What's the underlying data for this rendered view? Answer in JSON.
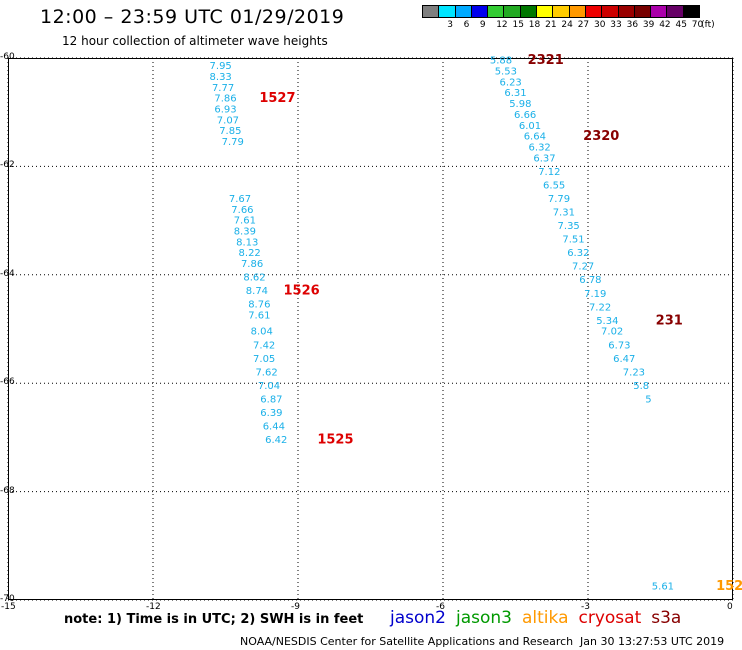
{
  "header": {
    "title": "12:00 – 23:59 UTC 01/29/2019",
    "subtitle": "12 hour collection of altimeter wave heights"
  },
  "color_legend": {
    "unit": "(ft)",
    "bins": [
      {
        "color": "#7f7f7f",
        "label": ""
      },
      {
        "color": "#00e5ff",
        "label": "3"
      },
      {
        "color": "#00aaff",
        "label": "6"
      },
      {
        "color": "#0000ee",
        "label": "9"
      },
      {
        "color": "#33cc33",
        "label": "12"
      },
      {
        "color": "#22aa22",
        "label": "15"
      },
      {
        "color": "#007700",
        "label": "18"
      },
      {
        "color": "#ffff00",
        "label": "21"
      },
      {
        "color": "#ffcc00",
        "label": "24"
      },
      {
        "color": "#ff9900",
        "label": "27"
      },
      {
        "color": "#ee0000",
        "label": "30"
      },
      {
        "color": "#cc0000",
        "label": "33"
      },
      {
        "color": "#990000",
        "label": "36"
      },
      {
        "color": "#770000",
        "label": "39"
      },
      {
        "color": "#aa00aa",
        "label": "42"
      },
      {
        "color": "#660066",
        "label": "45"
      },
      {
        "color": "#000000",
        "label": "70"
      }
    ]
  },
  "map": {
    "lat_range": [
      -70,
      -60
    ],
    "lon_range": [
      -15,
      0
    ],
    "lat_ticks": [
      "-60",
      "-62",
      "-64",
      "-66",
      "-68",
      "-70"
    ],
    "lon_ticks": [
      "-15",
      "-12",
      "-9",
      "-6",
      "-3",
      "0"
    ],
    "grid_line_color": "#000000",
    "value_color": "#1ab0e8",
    "tracks": [
      {
        "pass_label": "1527",
        "label_color": "#dd0000",
        "points": [
          {
            "lat": -60.15,
            "lon": -10.6,
            "value": "7.95"
          },
          {
            "lat": -60.35,
            "lon": -10.6,
            "value": "8.33"
          },
          {
            "lat": -60.55,
            "lon": -10.55,
            "value": "7.77"
          },
          {
            "lat": -60.75,
            "lon": -10.5,
            "value": "7.86"
          },
          {
            "lat": -60.95,
            "lon": -10.5,
            "value": "6.93"
          },
          {
            "lat": -61.15,
            "lon": -10.45,
            "value": "7.07"
          },
          {
            "lat": -61.35,
            "lon": -10.4,
            "value": "7.85"
          },
          {
            "lat": -61.55,
            "lon": -10.35,
            "value": "7.79"
          }
        ],
        "label_lat": -60.75,
        "label_lon": -9.8
      },
      {
        "pass_label": "1526",
        "label_color": "#dd0000",
        "points": [
          {
            "lat": -62.6,
            "lon": -10.2,
            "value": "7.67"
          },
          {
            "lat": -62.8,
            "lon": -10.15,
            "value": "7.66"
          },
          {
            "lat": -63.0,
            "lon": -10.1,
            "value": "7.61"
          },
          {
            "lat": -63.2,
            "lon": -10.1,
            "value": "8.39"
          },
          {
            "lat": -63.4,
            "lon": -10.05,
            "value": "8.13"
          },
          {
            "lat": -63.6,
            "lon": -10.0,
            "value": "8.22"
          },
          {
            "lat": -63.8,
            "lon": -9.95,
            "value": "7.86"
          },
          {
            "lat": -64.05,
            "lon": -9.9,
            "value": "8.62"
          },
          {
            "lat": -64.3,
            "lon": -9.85,
            "value": "8.74"
          },
          {
            "lat": -64.55,
            "lon": -9.8,
            "value": "8.76"
          },
          {
            "lat": -64.75,
            "lon": -9.8,
            "value": "7.61"
          },
          {
            "lat": -65.05,
            "lon": -9.75,
            "value": "8.04"
          },
          {
            "lat": -65.3,
            "lon": -9.7,
            "value": "7.42"
          },
          {
            "lat": -65.55,
            "lon": -9.7,
            "value": "7.05"
          },
          {
            "lat": -65.8,
            "lon": -9.65,
            "value": "7.62"
          },
          {
            "lat": -66.05,
            "lon": -9.6,
            "value": "7.04"
          },
          {
            "lat": -66.3,
            "lon": -9.55,
            "value": "6.87"
          },
          {
            "lat": -66.55,
            "lon": -9.55,
            "value": "6.39"
          },
          {
            "lat": -66.8,
            "lon": -9.5,
            "value": "6.44"
          }
        ],
        "label_lat": -64.3,
        "label_lon": -9.3
      },
      {
        "pass_label": "1525",
        "label_color": "#dd0000",
        "points": [
          {
            "lat": -67.05,
            "lon": -9.45,
            "value": "6.42"
          }
        ],
        "label_lat": -67.05,
        "label_lon": -8.6
      },
      {
        "pass_label": "2321",
        "label_color": "#880000",
        "points": [
          {
            "lat": -60.05,
            "lon": -4.8,
            "value": "5.88"
          },
          {
            "lat": -60.25,
            "lon": -4.7,
            "value": "5.53"
          },
          {
            "lat": -60.45,
            "lon": -4.6,
            "value": "6.23"
          },
          {
            "lat": -60.65,
            "lon": -4.5,
            "value": "6.31"
          },
          {
            "lat": -60.85,
            "lon": -4.4,
            "value": "5.98"
          },
          {
            "lat": -61.05,
            "lon": -4.3,
            "value": "6.66"
          },
          {
            "lat": -61.25,
            "lon": -4.2,
            "value": "6.01"
          },
          {
            "lat": -61.45,
            "lon": -4.1,
            "value": "6.64"
          },
          {
            "lat": -61.65,
            "lon": -4.0,
            "value": "6.32"
          }
        ],
        "label_lat": -60.05,
        "label_lon": -4.25
      },
      {
        "pass_label": "2320",
        "label_color": "#880000",
        "points": [
          {
            "lat": -61.85,
            "lon": -3.9,
            "value": "6.37"
          },
          {
            "lat": -62.1,
            "lon": -3.8,
            "value": "7.12"
          },
          {
            "lat": -62.35,
            "lon": -3.7,
            "value": "6.55"
          },
          {
            "lat": -62.6,
            "lon": -3.6,
            "value": "7.79"
          },
          {
            "lat": -62.85,
            "lon": -3.5,
            "value": "7.31"
          },
          {
            "lat": -63.1,
            "lon": -3.4,
            "value": "7.35"
          },
          {
            "lat": -63.35,
            "lon": -3.3,
            "value": "7.51"
          },
          {
            "lat": -63.6,
            "lon": -3.2,
            "value": "6.32"
          },
          {
            "lat": -63.85,
            "lon": -3.1,
            "value": "7.27"
          },
          {
            "lat": -64.1,
            "lon": -2.95,
            "value": "6.78"
          },
          {
            "lat": -64.35,
            "lon": -2.85,
            "value": "7.19"
          },
          {
            "lat": -64.6,
            "lon": -2.75,
            "value": "7.22"
          },
          {
            "lat": -64.85,
            "lon": -2.6,
            "value": "5.34"
          }
        ],
        "label_lat": -61.45,
        "label_lon": -3.1
      },
      {
        "pass_label": "231",
        "label_color": "#880000",
        "points": [
          {
            "lat": -65.05,
            "lon": -2.5,
            "value": "7.02"
          },
          {
            "lat": -65.3,
            "lon": -2.35,
            "value": "6.73"
          },
          {
            "lat": -65.55,
            "lon": -2.25,
            "value": "6.47"
          },
          {
            "lat": -65.8,
            "lon": -2.05,
            "value": "7.23"
          },
          {
            "lat": -66.05,
            "lon": -1.9,
            "value": "5.8"
          },
          {
            "lat": -66.3,
            "lon": -1.75,
            "value": "5"
          }
        ],
        "label_lat": -64.85,
        "label_lon": -1.6
      },
      {
        "pass_label": "152",
        "label_color": "#ff9900",
        "points": [
          {
            "lat": -69.75,
            "lon": -1.45,
            "value": "5.61"
          }
        ],
        "label_lat": -69.75,
        "label_lon": -0.35
      }
    ]
  },
  "footer": {
    "note": "note:  1) Time is in UTC;  2) SWH is in feet",
    "satellites": [
      {
        "name": "jason2",
        "color": "#0000cc"
      },
      {
        "name": "jason3",
        "color": "#009900"
      },
      {
        "name": "altika",
        "color": "#ff9900"
      },
      {
        "name": "cryosat",
        "color": "#dd0000"
      },
      {
        "name": "s3a",
        "color": "#880000"
      }
    ],
    "credit": "NOAA/NESDIS Center for Satellite Applications and Research",
    "timestamp": "Jan 30 13:27:53 UTC 2019"
  }
}
